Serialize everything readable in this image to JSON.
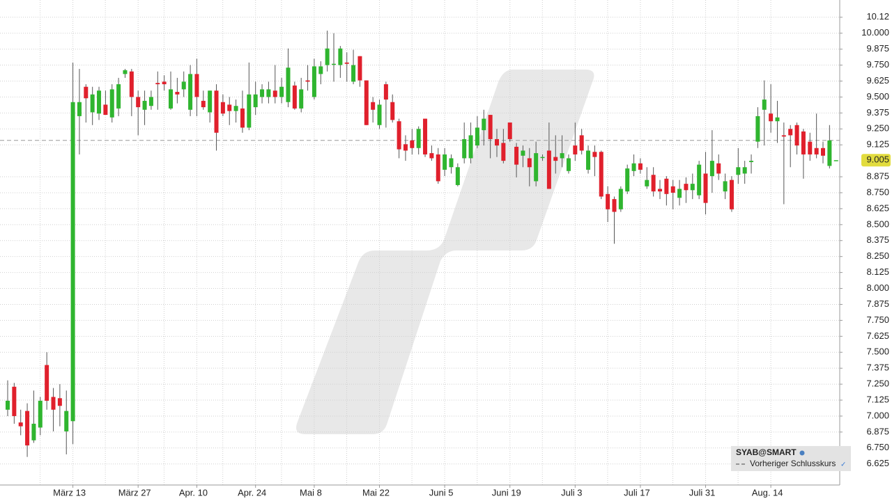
{
  "chart_data": {
    "type": "candlestick",
    "symbol": "SYAB@SMART",
    "categories": [
      null,
      null,
      null,
      null,
      null,
      null,
      null,
      null,
      null,
      null,
      "März 13",
      null,
      null,
      null,
      null,
      null,
      null,
      null,
      null,
      null,
      "März 27",
      null,
      null,
      null,
      null,
      null,
      null,
      null,
      null,
      "Apr. 10",
      null,
      null,
      null,
      null,
      null,
      null,
      null,
      null,
      "Apr. 24",
      null,
      null,
      null,
      null,
      null,
      null,
      null,
      null,
      "Mai 8",
      null,
      null,
      null,
      null,
      null,
      null,
      null,
      null,
      null,
      "Mai 22",
      null,
      null,
      null,
      null,
      null,
      null,
      null,
      null,
      null,
      "Juni 5",
      null,
      null,
      null,
      null,
      null,
      null,
      null,
      null,
      null,
      "Juni 19",
      null,
      null,
      null,
      null,
      null,
      null,
      null,
      null,
      null,
      "Juli 3",
      null,
      null,
      null,
      null,
      null,
      null,
      null,
      null,
      null,
      "Juli 17",
      null,
      null,
      null,
      null,
      null,
      null,
      null,
      null,
      null,
      "Juli 31",
      null,
      null,
      null,
      null,
      null,
      null,
      null,
      null,
      null,
      "Aug. 14",
      null,
      null,
      null,
      null,
      null,
      null,
      null,
      null,
      null,
      null
    ],
    "open": [
      7.05,
      7.23,
      6.95,
      7.04,
      6.81,
      6.91,
      7.4,
      7.15,
      7.14,
      6.88,
      6.96,
      9.35,
      9.58,
      9.38,
      9.37,
      9.44,
      9.34,
      9.41,
      9.68,
      9.7,
      9.5,
      9.4,
      9.43,
      9.61,
      9.62,
      9.41,
      9.54,
      9.56,
      9.4,
      9.68,
      9.47,
      9.38,
      9.55,
      9.46,
      9.44,
      9.39,
      9.41,
      9.26,
      9.42,
      9.5,
      9.5,
      9.55,
      9.5,
      9.46,
      9.59,
      9.41,
      9.63,
      9.5,
      9.68,
      9.75,
      9.76,
      9.75,
      9.77,
      9.62,
      9.82,
      9.63,
      9.46,
      9.28,
      9.6,
      9.46,
      9.31,
      9.13,
      9.16,
      9.1,
      9.33,
      9.06,
      9.05,
      8.93,
      8.95,
      8.81,
      9.02,
      9.02,
      9.12,
      9.24,
      9.36,
      9.17,
      9.14,
      9.3,
      9.11,
      9.04,
      9.02,
      8.84,
      9.03,
      9.08,
      9.03,
      9.02,
      8.92,
      9.12,
      9.2,
      8.93,
      9.07,
      9.07,
      8.74,
      8.7,
      8.62,
      8.76,
      8.92,
      8.98,
      8.8,
      8.89,
      8.78,
      8.86,
      8.8,
      8.71,
      8.82,
      8.77,
      8.73,
      8.9,
      8.88,
      8.98,
      8.76,
      8.85,
      8.89,
      8.9,
      8.99,
      9.15,
      9.4,
      9.37,
      9.31,
      9.2,
      9.25,
      9.28,
      9.23,
      9.15,
      9.1,
      9.1,
      8.96,
      9.005
    ],
    "high": [
      7.28,
      7.26,
      7.05,
      7.1,
      7.2,
      7.15,
      7.5,
      7.22,
      7.25,
      7.2,
      9.77,
      9.72,
      9.6,
      9.58,
      9.58,
      9.55,
      9.6,
      9.65,
      9.72,
      9.72,
      9.55,
      9.55,
      9.55,
      9.7,
      9.67,
      9.7,
      9.65,
      9.7,
      9.75,
      9.8,
      9.55,
      9.55,
      9.6,
      9.52,
      9.5,
      9.48,
      9.55,
      9.77,
      9.62,
      9.6,
      9.62,
      9.75,
      9.65,
      9.88,
      9.62,
      9.65,
      9.75,
      9.8,
      9.78,
      10.02,
      10.0,
      9.9,
      9.85,
      9.87,
      9.82,
      9.63,
      9.5,
      9.48,
      9.62,
      9.52,
      9.33,
      9.2,
      9.25,
      9.27,
      9.33,
      9.12,
      9.1,
      9.1,
      9.05,
      8.98,
      9.3,
      9.3,
      9.35,
      9.4,
      9.36,
      9.25,
      9.25,
      9.3,
      9.14,
      9.12,
      9.1,
      9.15,
      9.05,
      9.3,
      9.2,
      9.2,
      9.05,
      9.3,
      9.25,
      9.12,
      9.12,
      9.08,
      8.8,
      8.72,
      8.8,
      8.97,
      9.05,
      9.02,
      8.95,
      8.95,
      8.85,
      8.88,
      8.85,
      8.85,
      8.87,
      8.9,
      9.0,
      9.07,
      9.24,
      9.05,
      8.9,
      8.88,
      9.1,
      9.0,
      9.05,
      9.42,
      9.63,
      9.6,
      9.47,
      9.3,
      9.28,
      9.3,
      9.25,
      9.22,
      9.37,
      9.15,
      9.28,
      9.005
    ],
    "low": [
      7.0,
      6.94,
      6.85,
      6.68,
      6.79,
      6.85,
      7.05,
      6.88,
      6.92,
      6.7,
      6.78,
      9.05,
      9.3,
      9.28,
      9.32,
      9.37,
      9.3,
      9.35,
      9.65,
      9.35,
      9.2,
      9.28,
      9.4,
      9.4,
      9.55,
      9.4,
      9.45,
      9.5,
      9.35,
      9.35,
      9.4,
      9.3,
      9.08,
      9.35,
      9.28,
      9.3,
      9.22,
      9.24,
      9.36,
      9.45,
      9.45,
      9.45,
      9.45,
      9.42,
      9.4,
      9.38,
      9.55,
      9.48,
      9.6,
      9.7,
      9.62,
      9.65,
      9.62,
      9.6,
      9.58,
      9.28,
      9.3,
      9.25,
      9.26,
      9.3,
      9.02,
      9.0,
      9.05,
      9.05,
      9.03,
      9.0,
      8.82,
      8.88,
      8.9,
      8.8,
      8.98,
      8.98,
      9.1,
      9.12,
      9.02,
      9.03,
      8.98,
      9.15,
      8.87,
      8.95,
      8.8,
      8.8,
      9.0,
      8.78,
      8.9,
      8.95,
      8.9,
      9.0,
      9.05,
      8.9,
      8.88,
      8.7,
      8.52,
      8.35,
      8.6,
      8.74,
      8.88,
      8.9,
      8.78,
      8.72,
      8.7,
      8.65,
      8.62,
      8.65,
      8.67,
      8.7,
      8.7,
      8.58,
      8.75,
      8.85,
      8.7,
      8.6,
      8.82,
      8.82,
      8.9,
      9.1,
      9.12,
      9.22,
      9.14,
      8.66,
      8.95,
      9.05,
      8.86,
      9.0,
      9.02,
      8.98,
      8.94,
      9.005
    ],
    "close": [
      7.12,
      7.0,
      6.92,
      6.77,
      6.94,
      7.12,
      7.12,
      7.05,
      7.08,
      7.04,
      9.46,
      9.46,
      9.49,
      9.52,
      9.55,
      9.36,
      9.56,
      9.6,
      9.71,
      9.5,
      9.42,
      9.47,
      9.5,
      9.6,
      9.6,
      9.56,
      9.52,
      9.62,
      9.68,
      9.5,
      9.42,
      9.55,
      9.22,
      9.37,
      9.39,
      9.43,
      9.26,
      9.52,
      9.52,
      9.56,
      9.56,
      9.5,
      9.58,
      9.73,
      9.41,
      9.56,
      9.62,
      9.74,
      9.74,
      9.88,
      9.76,
      9.88,
      9.76,
      9.75,
      9.63,
      9.28,
      9.4,
      9.44,
      9.48,
      9.32,
      9.09,
      9.08,
      9.1,
      9.25,
      9.05,
      9.02,
      8.84,
      9.05,
      9.02,
      8.95,
      9.17,
      9.2,
      9.26,
      9.33,
      9.17,
      9.12,
      9.0,
      9.17,
      8.97,
      9.08,
      8.95,
      9.06,
      9.03,
      8.78,
      9.0,
      9.06,
      9.02,
      9.05,
      9.08,
      9.08,
      9.03,
      8.72,
      8.62,
      8.6,
      8.78,
      8.94,
      8.98,
      8.93,
      8.85,
      8.76,
      8.76,
      8.74,
      8.75,
      8.78,
      8.77,
      8.82,
      8.97,
      8.67,
      9.0,
      8.9,
      8.84,
      8.62,
      8.95,
      8.95,
      9.0,
      9.35,
      9.48,
      9.31,
      9.34,
      9.19,
      9.2,
      9.12,
      9.05,
      9.05,
      9.05,
      9.04,
      9.16,
      9.005
    ],
    "up_color": "#2fb52f",
    "down_color": "#e0202c",
    "ylim": [
      6.46,
      10.26
    ],
    "yticks": [
      6.625,
      {
        "value": 6.75,
        "label": "6.750"
      },
      6.875,
      {
        "value": 7,
        "label": "7.000"
      },
      7.125,
      {
        "value": 7.25,
        "label": "7.250"
      },
      7.375,
      {
        "value": 7.5,
        "label": "7.500"
      },
      7.625,
      {
        "value": 7.75,
        "label": "7.750"
      },
      7.875,
      {
        "value": 8,
        "label": "8.000"
      },
      8.125,
      {
        "value": 8.25,
        "label": "8.250"
      },
      8.375,
      {
        "value": 8.5,
        "label": "8.500"
      },
      8.625,
      {
        "value": 8.75,
        "label": "8.750"
      },
      8.875,
      9.125,
      {
        "value": 9.25,
        "label": "9.250"
      },
      9.375,
      {
        "value": 9.5,
        "label": "9.500"
      },
      9.625,
      {
        "value": 9.75,
        "label": "9.750"
      },
      9.875,
      {
        "value": 10,
        "label": "10.000"
      },
      {
        "value": 10.125,
        "label": "10.12"
      }
    ],
    "last_price": 9.005,
    "previous_close": {
      "name": "Vorheriger Schlusskurs",
      "value": 9.16
    },
    "grid": true
  }
}
